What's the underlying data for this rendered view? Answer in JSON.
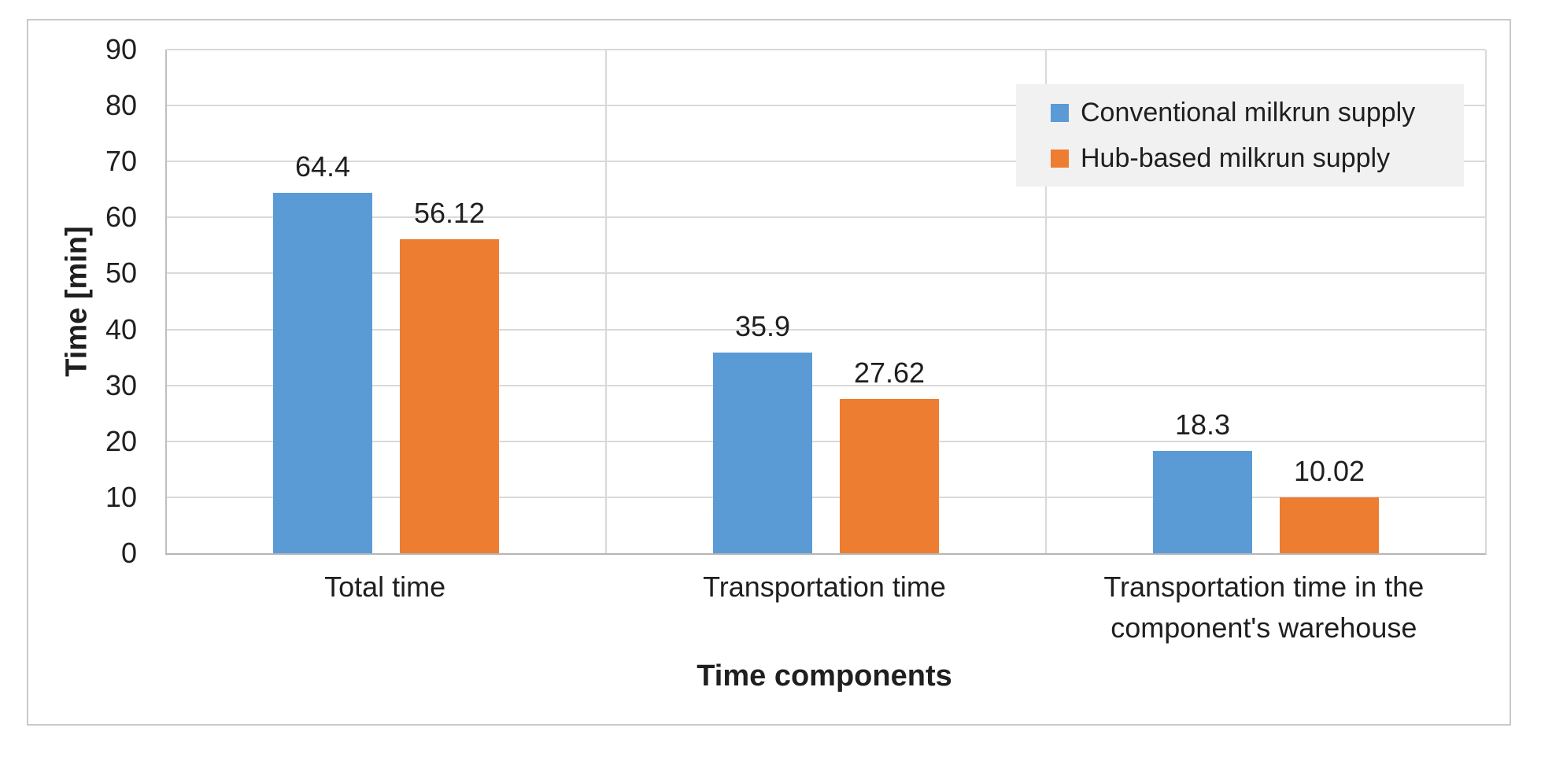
{
  "figure": {
    "background": "#ffffff",
    "frame_border_color": "#c9c9c9",
    "gridline_color": "#d9d9d9",
    "axis_line_color": "#bfbfbf",
    "legend_background": "#f1f1f1",
    "text_color": "#1f1f1f"
  },
  "chart_data": {
    "type": "bar",
    "title": "",
    "categories": [
      "Total time",
      "Transportation time",
      "Transportation time in the component's warehouse"
    ],
    "series": [
      {
        "name": "Conventional milkrun supply",
        "color": "#5B9BD5",
        "values": [
          64.4,
          35.9,
          18.3
        ]
      },
      {
        "name": "Hub-based milkrun supply",
        "color": "#ED7D31",
        "values": [
          56.12,
          27.62,
          10.02
        ]
      }
    ],
    "data_labels": [
      [
        "64.4",
        "56.12"
      ],
      [
        "35.9",
        "27.62"
      ],
      [
        "18.3",
        "10.02"
      ]
    ],
    "xlabel": "Time components",
    "ylabel": "Time [min]",
    "ylim": [
      0,
      90
    ],
    "ytick_step": 10,
    "ytick_labels": [
      "0",
      "10",
      "20",
      "30",
      "40",
      "50",
      "60",
      "70",
      "80",
      "90"
    ],
    "grid": true,
    "legend_position": "top-right"
  }
}
